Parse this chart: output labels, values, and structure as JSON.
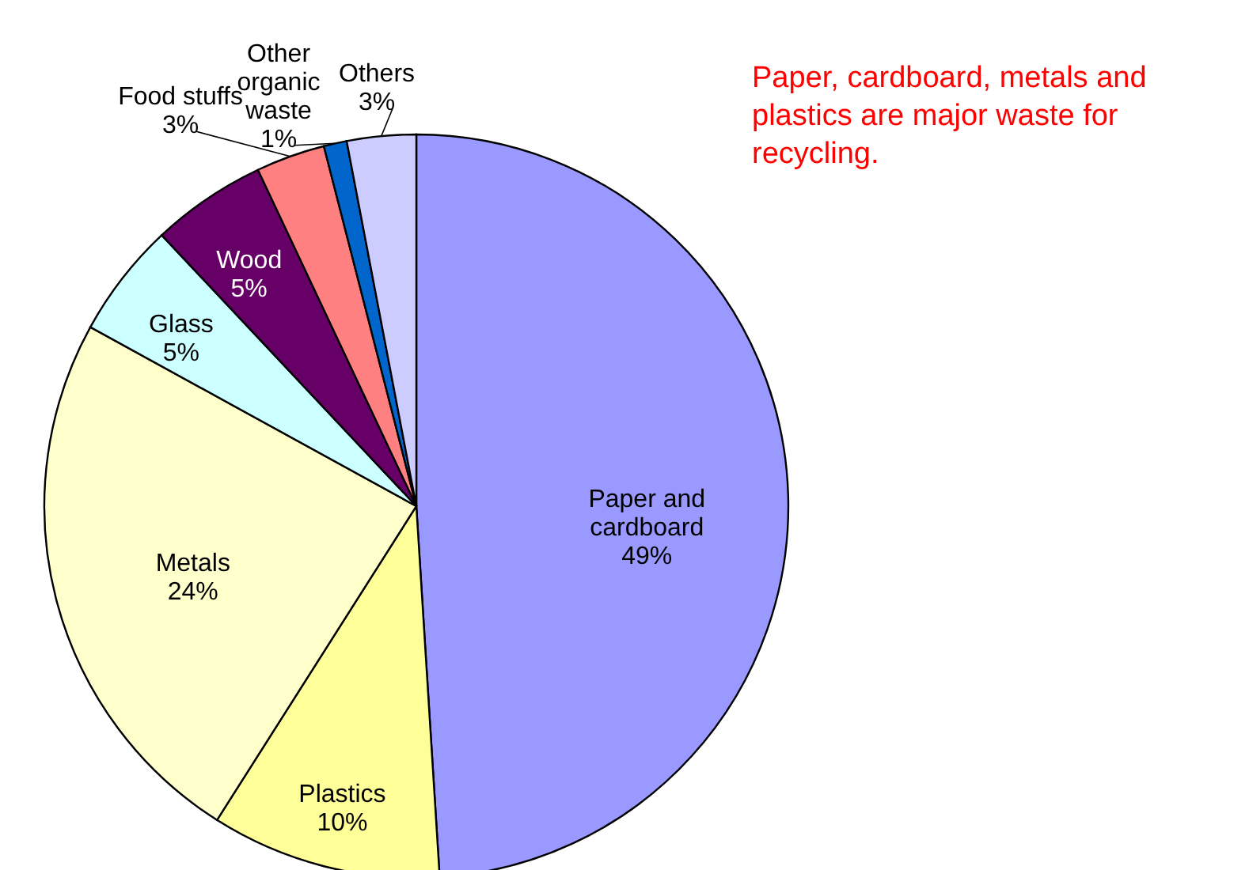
{
  "chart_data": {
    "type": "pie",
    "categories": [
      "Paper and cardboard",
      "Plastics",
      "Metals",
      "Glass",
      "Wood",
      "Food stuffs",
      "Other organic waste",
      "Others"
    ],
    "values": [
      49,
      10,
      24,
      5,
      5,
      3,
      1,
      3
    ],
    "value_labels": [
      "49%",
      "10%",
      "24%",
      "5%",
      "5%",
      "3%",
      "1%",
      "3%"
    ],
    "colors": [
      "#9999ff",
      "#ffff99",
      "#ffffcc",
      "#ccffff",
      "#660066",
      "#ff8080",
      "#0066cc",
      "#ccccff"
    ],
    "annotations": [
      "Paper, cardboard, metals and plastics are major waste for recycling."
    ]
  }
}
